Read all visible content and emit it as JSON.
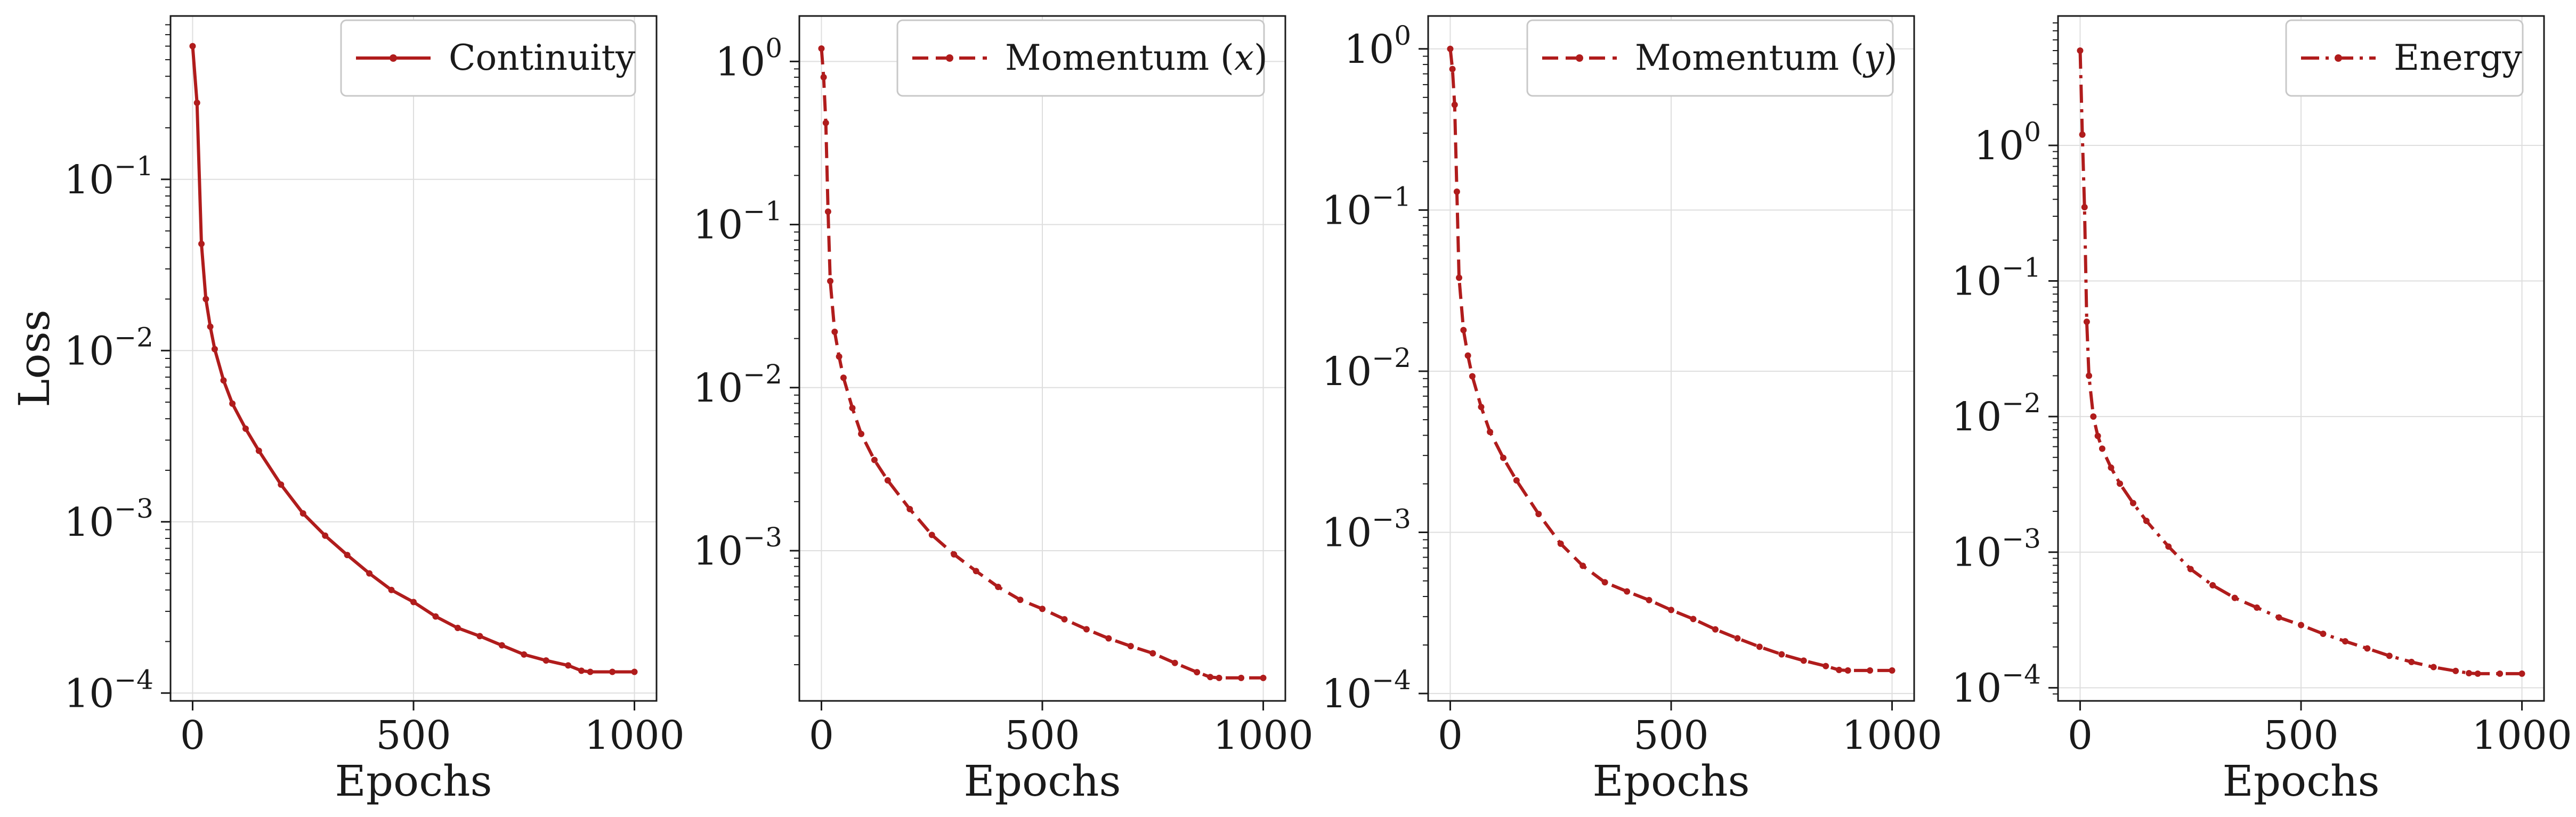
{
  "figure": {
    "ylabel": "Loss",
    "line_color": "#b01c1c",
    "grid_color": "#dedede"
  },
  "chart_data": [
    {
      "type": "line",
      "legend": "Continuity",
      "legend_placement": "top-right",
      "linestyle": "solid",
      "xlabel": "Epochs",
      "ylabel": "Loss",
      "xlim": [
        -50,
        1050
      ],
      "ylim": [
        9e-05,
        0.9
      ],
      "yscale": "log",
      "xticks": [
        0,
        500,
        1000
      ],
      "yticks": [
        {
          "value": 0.1,
          "base": "10",
          "exp": "−1"
        },
        {
          "value": 0.01,
          "base": "10",
          "exp": "−2"
        },
        {
          "value": 0.001,
          "base": "10",
          "exp": "−3"
        },
        {
          "value": 0.0001,
          "base": "10",
          "exp": "−4"
        }
      ],
      "grid": true,
      "x": [
        0,
        10,
        20,
        30,
        40,
        50,
        70,
        90,
        120,
        150,
        200,
        250,
        300,
        350,
        400,
        450,
        500,
        550,
        600,
        650,
        700,
        750,
        800,
        850,
        880,
        900,
        950,
        1000
      ],
      "y": [
        0.6,
        0.28,
        0.042,
        0.02,
        0.0138,
        0.0102,
        0.0067,
        0.0049,
        0.0035,
        0.0026,
        0.00165,
        0.00112,
        0.00083,
        0.00064,
        0.0005,
        0.0004,
        0.00034,
        0.00028,
        0.00024,
        0.000215,
        0.00019,
        0.000168,
        0.000155,
        0.000145,
        0.000135,
        0.000133,
        0.000133,
        0.000133
      ]
    },
    {
      "type": "line",
      "legend_prefix": "Momentum (",
      "legend_var": "x",
      "legend_suffix": ")",
      "legend_placement": "top-right",
      "linestyle": "dashed",
      "xlabel": "Epochs",
      "ylabel": "",
      "xlim": [
        -50,
        1050
      ],
      "ylim": [
        0.00012,
        1.9
      ],
      "yscale": "log",
      "xticks": [
        0,
        500,
        1000
      ],
      "yticks": [
        {
          "value": 1,
          "base": "10",
          "exp": "0"
        },
        {
          "value": 0.1,
          "base": "10",
          "exp": "−1"
        },
        {
          "value": 0.01,
          "base": "10",
          "exp": "−2"
        },
        {
          "value": 0.001,
          "base": "10",
          "exp": "−3"
        }
      ],
      "grid": true,
      "x": [
        0,
        5,
        10,
        15,
        20,
        30,
        40,
        50,
        70,
        90,
        120,
        150,
        200,
        250,
        300,
        350,
        400,
        450,
        500,
        550,
        600,
        650,
        700,
        750,
        800,
        850,
        880,
        900,
        950,
        1000
      ],
      "y": [
        1.2,
        0.8,
        0.42,
        0.12,
        0.045,
        0.022,
        0.0155,
        0.0115,
        0.0075,
        0.0052,
        0.0036,
        0.0027,
        0.0018,
        0.00125,
        0.00095,
        0.00075,
        0.0006,
        0.0005,
        0.00044,
        0.00038,
        0.00033,
        0.00029,
        0.00026,
        0.000235,
        0.000205,
        0.00018,
        0.000168,
        0.000166,
        0.000166,
        0.000166
      ]
    },
    {
      "type": "line",
      "legend_prefix": "Momentum (",
      "legend_var": "y",
      "legend_suffix": ")",
      "legend_placement": "top-right",
      "linestyle": "dashed",
      "xlabel": "Epochs",
      "ylabel": "",
      "xlim": [
        -50,
        1050
      ],
      "ylim": [
        9e-05,
        1.6
      ],
      "yscale": "log",
      "xticks": [
        0,
        500,
        1000
      ],
      "yticks": [
        {
          "value": 1,
          "base": "10",
          "exp": "0"
        },
        {
          "value": 0.1,
          "base": "10",
          "exp": "−1"
        },
        {
          "value": 0.01,
          "base": "10",
          "exp": "−2"
        },
        {
          "value": 0.001,
          "base": "10",
          "exp": "−3"
        },
        {
          "value": 0.0001,
          "base": "10",
          "exp": "−4"
        }
      ],
      "grid": true,
      "x": [
        0,
        5,
        10,
        15,
        20,
        30,
        40,
        50,
        70,
        90,
        120,
        150,
        200,
        250,
        300,
        350,
        400,
        450,
        500,
        550,
        600,
        650,
        700,
        750,
        800,
        850,
        880,
        900,
        950,
        1000
      ],
      "y": [
        1.0,
        0.75,
        0.45,
        0.13,
        0.038,
        0.018,
        0.0125,
        0.0093,
        0.006,
        0.0042,
        0.0029,
        0.0021,
        0.0013,
        0.00085,
        0.00062,
        0.00049,
        0.00043,
        0.00038,
        0.00033,
        0.00029,
        0.00025,
        0.00022,
        0.000195,
        0.000175,
        0.00016,
        0.000148,
        0.00014,
        0.000139,
        0.000139,
        0.000139
      ]
    },
    {
      "type": "line",
      "legend": "Energy",
      "legend_placement": "top-right",
      "linestyle": "dashdot",
      "xlabel": "Epochs",
      "ylabel": "",
      "xlim": [
        -50,
        1050
      ],
      "ylim": [
        8e-05,
        9
      ],
      "yscale": "log",
      "xticks": [
        0,
        500,
        1000
      ],
      "yticks": [
        {
          "value": 1,
          "base": "10",
          "exp": "0"
        },
        {
          "value": 0.1,
          "base": "10",
          "exp": "−1"
        },
        {
          "value": 0.01,
          "base": "10",
          "exp": "−2"
        },
        {
          "value": 0.001,
          "base": "10",
          "exp": "−3"
        },
        {
          "value": 0.0001,
          "base": "10",
          "exp": "−4"
        }
      ],
      "grid": true,
      "x": [
        0,
        5,
        10,
        15,
        20,
        30,
        40,
        50,
        70,
        90,
        120,
        150,
        200,
        250,
        300,
        350,
        400,
        450,
        500,
        550,
        600,
        650,
        700,
        750,
        800,
        850,
        880,
        900,
        950,
        1000
      ],
      "y": [
        5.0,
        1.2,
        0.35,
        0.05,
        0.02,
        0.01,
        0.0072,
        0.0058,
        0.0042,
        0.0032,
        0.0023,
        0.0017,
        0.0011,
        0.00075,
        0.00057,
        0.00046,
        0.00039,
        0.00033,
        0.00029,
        0.00025,
        0.00022,
        0.000195,
        0.000172,
        0.000155,
        0.000142,
        0.000133,
        0.000128,
        0.000127,
        0.000127,
        0.000127
      ]
    }
  ]
}
